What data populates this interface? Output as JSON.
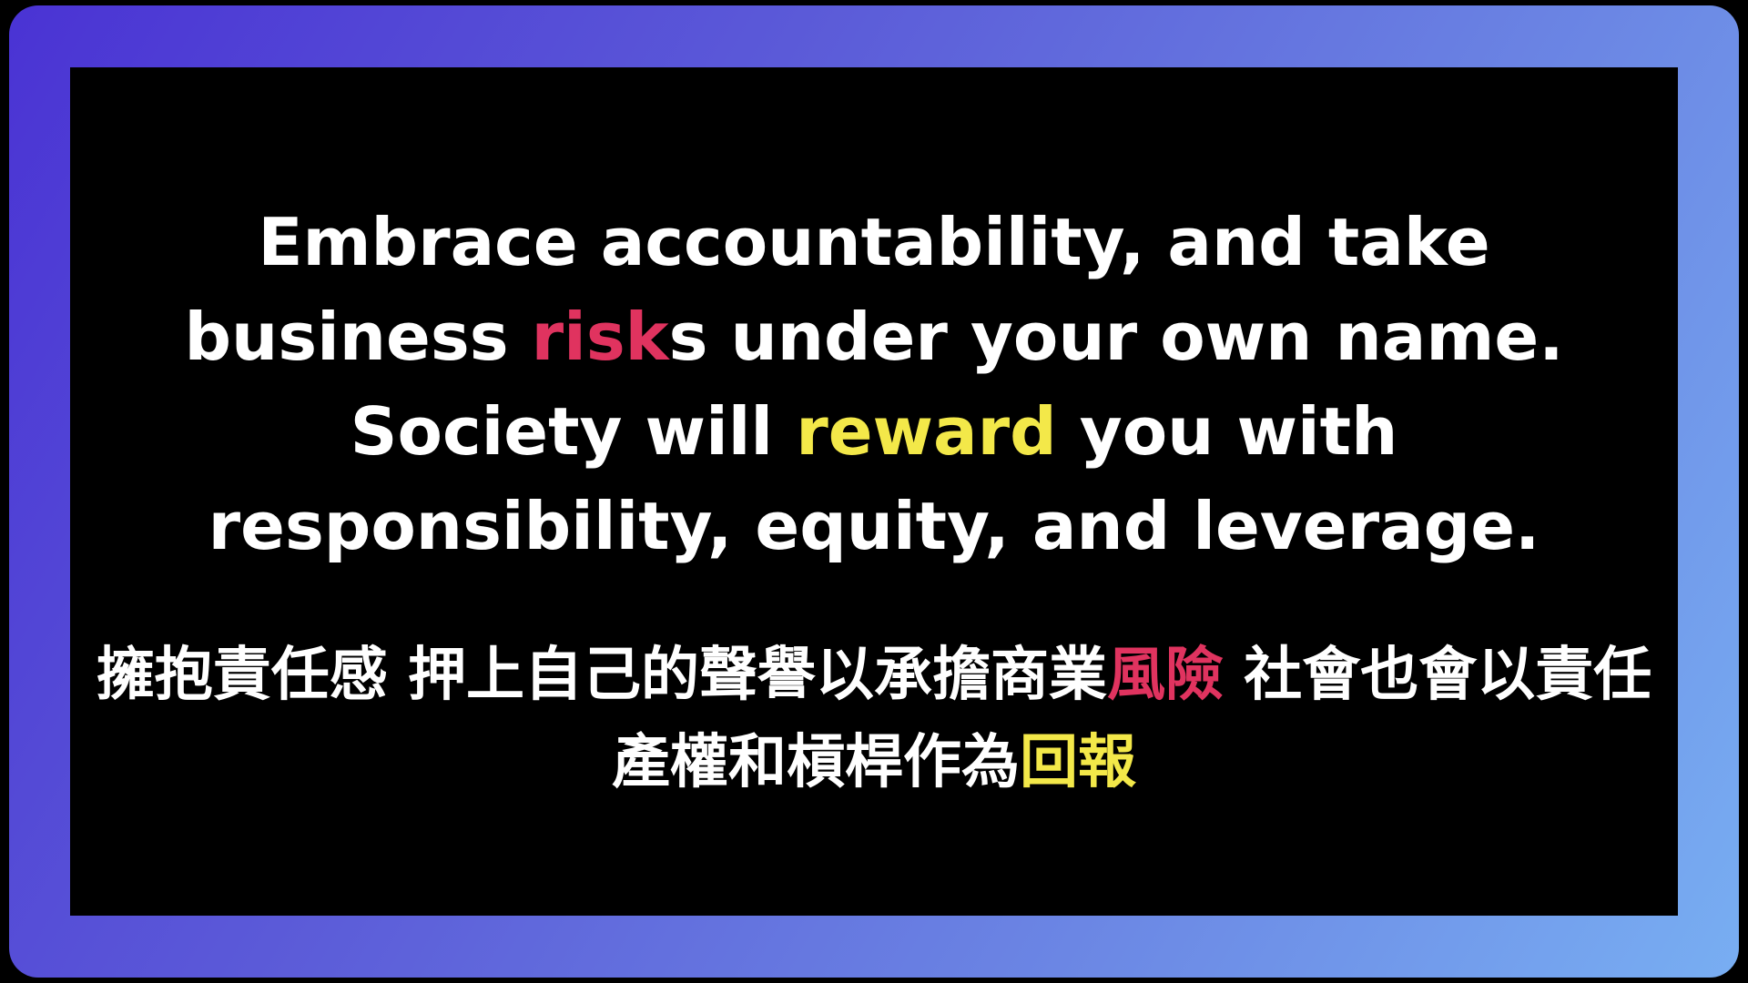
{
  "colors": {
    "highlight_red": "#e0335f",
    "highlight_yellow": "#f3e849",
    "frame_gradient_start": "#4a33d4",
    "frame_gradient_end": "#78aef2"
  },
  "english": {
    "part1": "Embrace accountability, and take business ",
    "highlight_risk": "risk",
    "part2": "s under your own name. Society will ",
    "highlight_reward": "reward",
    "part3": " you with responsibility, equity, and leverage."
  },
  "chinese": {
    "part1": "擁抱責任感 押上自己的聲譽以承擔商業",
    "highlight_risk": "風險",
    "part2": " 社會也會以責任 產權和槓桿作為",
    "highlight_reward": "回報"
  }
}
